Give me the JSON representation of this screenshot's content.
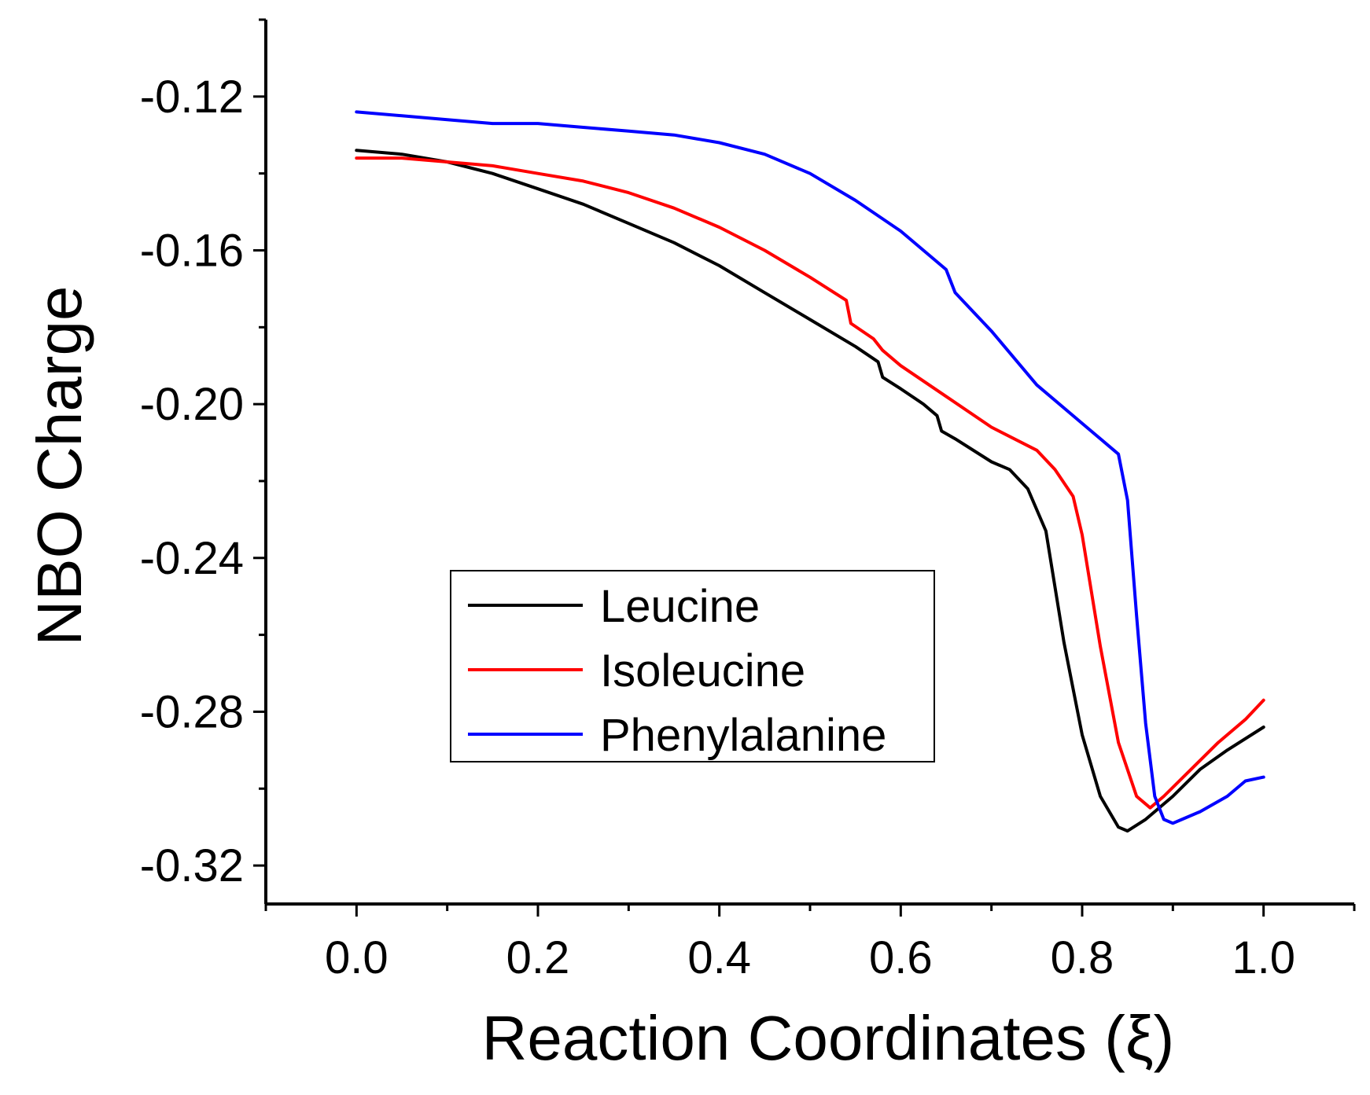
{
  "chart_data": {
    "type": "line",
    "xlabel": "Reaction Coordinates (ξ)",
    "ylabel": "NBO Charge",
    "xlim": [
      -0.1,
      1.1
    ],
    "ylim": [
      -0.33,
      -0.1
    ],
    "xticks": [
      0.0,
      0.2,
      0.4,
      0.6,
      0.8,
      1.0
    ],
    "xtick_labels": [
      "0.0",
      "0.2",
      "0.4",
      "0.6",
      "0.8",
      "1.0"
    ],
    "yticks": [
      -0.12,
      -0.16,
      -0.2,
      -0.24,
      -0.28,
      -0.32
    ],
    "ytick_labels": [
      "-0.12",
      "-0.16",
      "-0.20",
      "-0.24",
      "-0.28",
      "-0.32"
    ],
    "grid": false,
    "legend_position": "center-bottom",
    "series": [
      {
        "name": "Leucine",
        "color": "#000000",
        "x": [
          0.0,
          0.05,
          0.1,
          0.15,
          0.2,
          0.25,
          0.3,
          0.35,
          0.4,
          0.45,
          0.5,
          0.55,
          0.575,
          0.58,
          0.6,
          0.625,
          0.64,
          0.645,
          0.66,
          0.7,
          0.72,
          0.74,
          0.76,
          0.78,
          0.8,
          0.82,
          0.84,
          0.85,
          0.87,
          0.9,
          0.93,
          0.96,
          1.0
        ],
        "y": [
          -0.134,
          -0.135,
          -0.137,
          -0.14,
          -0.144,
          -0.148,
          -0.153,
          -0.158,
          -0.164,
          -0.171,
          -0.178,
          -0.185,
          -0.189,
          -0.193,
          -0.196,
          -0.2,
          -0.203,
          -0.207,
          -0.209,
          -0.215,
          -0.217,
          -0.222,
          -0.233,
          -0.262,
          -0.286,
          -0.302,
          -0.31,
          -0.311,
          -0.308,
          -0.302,
          -0.295,
          -0.29,
          -0.284
        ]
      },
      {
        "name": "Isoleucine",
        "color": "#ff0000",
        "x": [
          0.0,
          0.05,
          0.1,
          0.15,
          0.2,
          0.25,
          0.3,
          0.35,
          0.4,
          0.45,
          0.5,
          0.54,
          0.545,
          0.57,
          0.58,
          0.6,
          0.65,
          0.7,
          0.75,
          0.77,
          0.79,
          0.8,
          0.82,
          0.84,
          0.86,
          0.875,
          0.89,
          0.92,
          0.95,
          0.98,
          1.0
        ],
        "y": [
          -0.136,
          -0.136,
          -0.137,
          -0.138,
          -0.14,
          -0.142,
          -0.145,
          -0.149,
          -0.154,
          -0.16,
          -0.167,
          -0.173,
          -0.179,
          -0.183,
          -0.186,
          -0.19,
          -0.198,
          -0.206,
          -0.212,
          -0.217,
          -0.224,
          -0.234,
          -0.263,
          -0.288,
          -0.302,
          -0.305,
          -0.302,
          -0.295,
          -0.288,
          -0.282,
          -0.277
        ]
      },
      {
        "name": "Phenylalanine",
        "color": "#0000ff",
        "x": [
          0.0,
          0.05,
          0.1,
          0.15,
          0.2,
          0.25,
          0.3,
          0.35,
          0.4,
          0.45,
          0.5,
          0.55,
          0.6,
          0.65,
          0.66,
          0.7,
          0.75,
          0.8,
          0.84,
          0.85,
          0.86,
          0.87,
          0.88,
          0.89,
          0.9,
          0.91,
          0.93,
          0.96,
          0.98,
          1.0
        ],
        "y": [
          -0.124,
          -0.125,
          -0.126,
          -0.127,
          -0.127,
          -0.128,
          -0.129,
          -0.13,
          -0.132,
          -0.135,
          -0.14,
          -0.147,
          -0.155,
          -0.165,
          -0.171,
          -0.181,
          -0.195,
          -0.205,
          -0.213,
          -0.225,
          -0.255,
          -0.283,
          -0.302,
          -0.308,
          -0.309,
          -0.308,
          -0.306,
          -0.302,
          -0.298,
          -0.297
        ]
      }
    ]
  }
}
